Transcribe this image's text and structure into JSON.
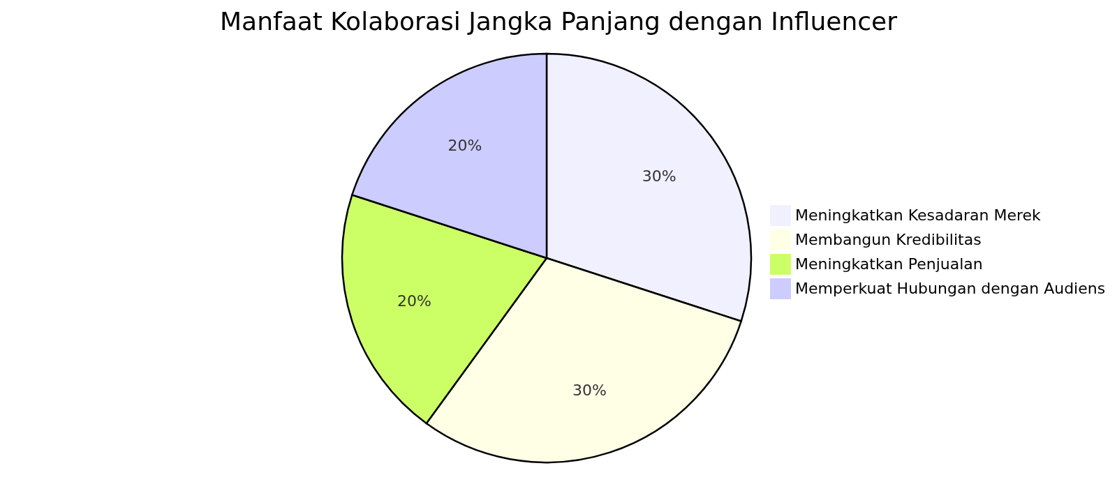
{
  "chart_data": {
    "type": "pie",
    "title": "Manfaat Kolaborasi Jangka Panjang dengan Influencer",
    "categories": [
      "Meningkatkan Kesadaran Merek",
      "Membangun Kredibilitas",
      "Meningkatkan Penjualan",
      "Memperkuat Hubungan dengan Audiens"
    ],
    "values": [
      30,
      30,
      20,
      20
    ],
    "colors": [
      "#f0f0ff",
      "#ffffe6",
      "#ccff66",
      "#ccccff"
    ],
    "value_labels": [
      "30%",
      "30%",
      "20%",
      "20%"
    ],
    "legend": "right"
  }
}
